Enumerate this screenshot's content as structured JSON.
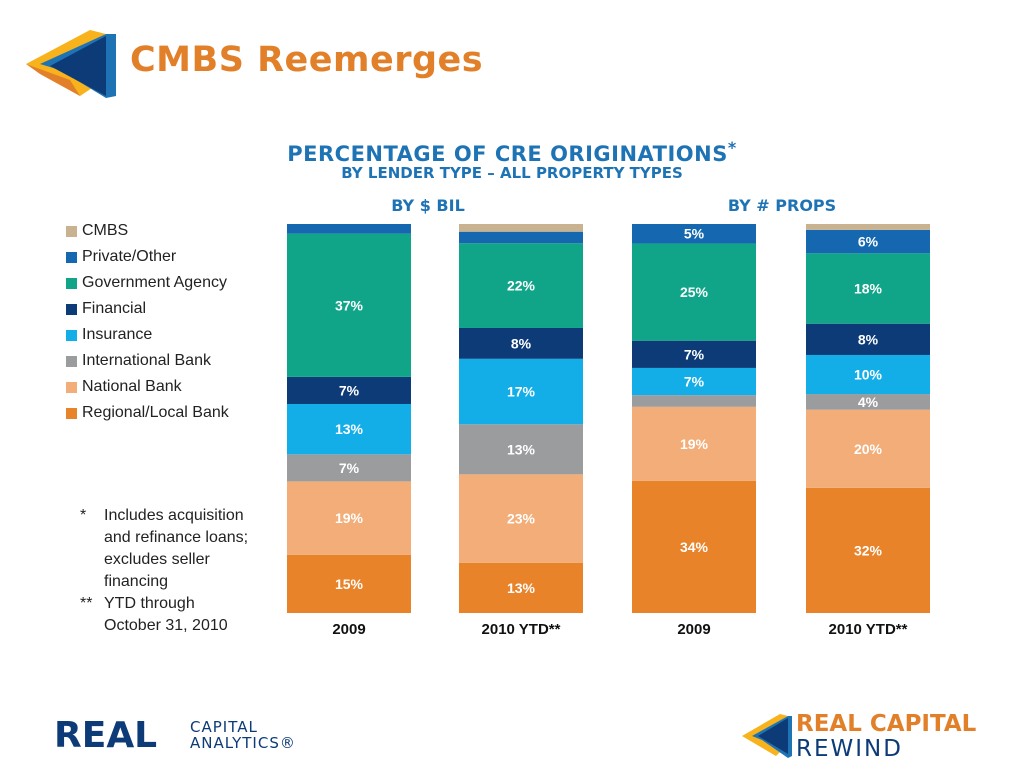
{
  "slide": {
    "title": "CMBS Reemerges"
  },
  "chart_data": {
    "type": "bar",
    "stacked": true,
    "title": "PERCENTAGE OF CRE ORIGINATIONS",
    "title_mark": "*",
    "subtitle": "BY LENDER TYPE – ALL PROPERTY TYPES",
    "groups": [
      {
        "label": "BY $ BIL",
        "categories": [
          "2009",
          "2010 YTD**"
        ]
      },
      {
        "label": "BY # PROPS",
        "categories": [
          "2009",
          "2010 YTD**"
        ]
      }
    ],
    "categories": [
      "2009",
      "2010 YTD**",
      "2009",
      "2010 YTD**"
    ],
    "ylim": [
      0,
      100
    ],
    "legend_position": "left",
    "series": [
      {
        "name": "Regional/Local Bank",
        "color": "#e8832a",
        "values": [
          15,
          13,
          34,
          32
        ],
        "labels": [
          "15%",
          "13%",
          "34%",
          "32%"
        ]
      },
      {
        "name": "National Bank",
        "color": "#f2ad78",
        "values": [
          19,
          23,
          19,
          20
        ],
        "labels": [
          "19%",
          "23%",
          "19%",
          "20%"
        ]
      },
      {
        "name": "International Bank",
        "color": "#9b9c9e",
        "values": [
          7,
          13,
          3,
          4
        ],
        "labels": [
          "7%",
          "13%",
          "",
          "4%"
        ]
      },
      {
        "name": "Insurance",
        "color": "#13aee8",
        "values": [
          13,
          17,
          7,
          10
        ],
        "labels": [
          "13%",
          "17%",
          "7%",
          "10%"
        ]
      },
      {
        "name": "Financial",
        "color": "#0d3b78",
        "values": [
          7,
          8,
          7,
          8
        ],
        "labels": [
          "7%",
          "8%",
          "7%",
          "8%"
        ]
      },
      {
        "name": "Government Agency",
        "color": "#10a589",
        "values": [
          37,
          22,
          25,
          18
        ],
        "labels": [
          "37%",
          "22%",
          "25%",
          "18%"
        ]
      },
      {
        "name": "Private/Other",
        "color": "#1568b0",
        "values": [
          2.5,
          3,
          5,
          6
        ],
        "labels": [
          "",
          "",
          "5%",
          "6%"
        ]
      },
      {
        "name": "CMBS",
        "color": "#c9b28f",
        "values": [
          0,
          2,
          0,
          1.5
        ],
        "labels": [
          "",
          "",
          "",
          ""
        ]
      }
    ]
  },
  "legend": {
    "items": [
      {
        "name": "CMBS",
        "color": "#c9b28f"
      },
      {
        "name": "Private/Other",
        "color": "#1568b0"
      },
      {
        "name": "Government Agency",
        "color": "#10a589"
      },
      {
        "name": "Financial",
        "color": "#0d3b78"
      },
      {
        "name": "Insurance",
        "color": "#13aee8"
      },
      {
        "name": "International Bank",
        "color": "#9b9c9e"
      },
      {
        "name": "National Bank",
        "color": "#f2ad78"
      },
      {
        "name": "Regional/Local Bank",
        "color": "#e8832a"
      }
    ]
  },
  "footnotes": [
    {
      "mark": "*",
      "text": "Includes acquisition and refinance loans; excludes seller financing"
    },
    {
      "mark": "**",
      "text": "YTD through October 31, 2010"
    }
  ],
  "branding": {
    "left_word": "REAL",
    "left_sub1": "CAPITAL",
    "left_sub2": "ANALYTICS®",
    "right_line1": "REAL CAPITAL",
    "right_line2": "REWIND",
    "accent_orange": "#e2802a",
    "accent_blue": "#1e73b5",
    "navy": "#0d3b78"
  }
}
